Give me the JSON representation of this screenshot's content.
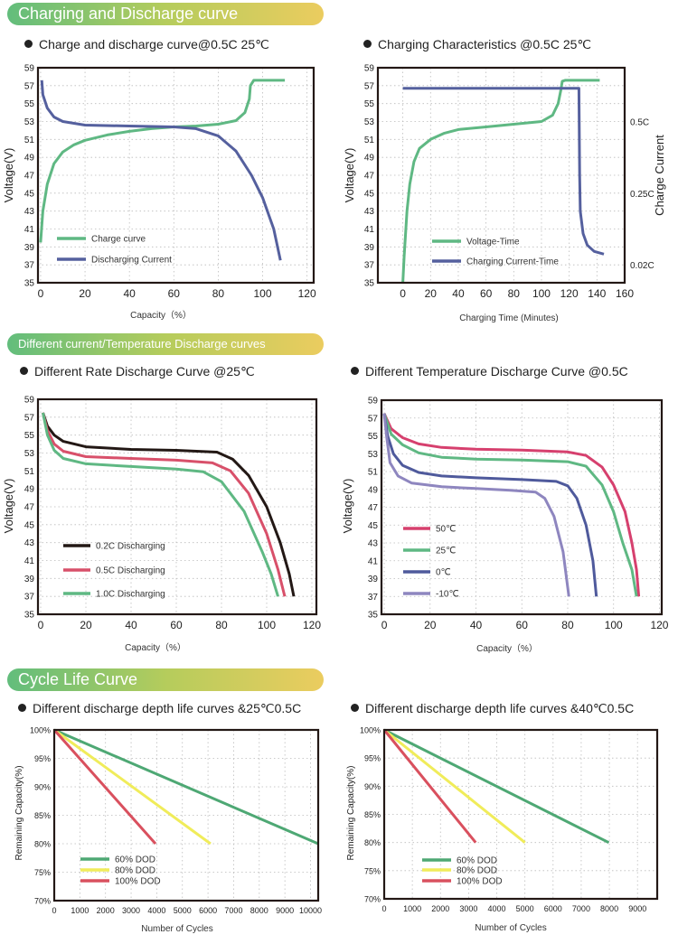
{
  "banners": {
    "charging": "Charging and Discharge curve",
    "temperature": "Different current/Temperature Discharge curves",
    "cycle": "Cycle Life Curve"
  },
  "chart_data": [
    {
      "type": "line",
      "title": "Charge and discharge curve@0.5C 25℃",
      "xlabel": "Capacity（%）",
      "ylabel": "Voltage(V)",
      "xlim": [
        -1.2,
        123
      ],
      "ylim": [
        35,
        59
      ],
      "xticks": [
        "0",
        "20",
        "40",
        "60",
        "80",
        "100",
        "120"
      ],
      "xtick_values": [
        0,
        20,
        40,
        60,
        80,
        100,
        120
      ],
      "yticks": [
        "35",
        "37",
        "39",
        "41",
        "43",
        "45",
        "47",
        "49",
        "51",
        "53",
        "55",
        "57",
        "59"
      ],
      "ytick_values": [
        35,
        37,
        39,
        41,
        43,
        45,
        47,
        49,
        51,
        53,
        55,
        57,
        59
      ],
      "grid": true,
      "legend": "bottom-left",
      "series": [
        {
          "name": "Charge curve",
          "color": "#5fb883",
          "points": [
            [
              0,
              39.5
            ],
            [
              1,
              43
            ],
            [
              3,
              46
            ],
            [
              6,
              48.3
            ],
            [
              10,
              49.6
            ],
            [
              15,
              50.4
            ],
            [
              20,
              50.9
            ],
            [
              30,
              51.5
            ],
            [
              40,
              51.9
            ],
            [
              50,
              52.2
            ],
            [
              60,
              52.4
            ],
            [
              70,
              52.5
            ],
            [
              80,
              52.7
            ],
            [
              88,
              53.1
            ],
            [
              92,
              54
            ],
            [
              94,
              55.5
            ],
            [
              94.5,
              57
            ],
            [
              96,
              57.6
            ],
            [
              110,
              57.6
            ]
          ]
        },
        {
          "name": "Discharging Current",
          "color": "#55609e",
          "points": [
            [
              0.5,
              57.6
            ],
            [
              1,
              56
            ],
            [
              3,
              54.5
            ],
            [
              6,
              53.5
            ],
            [
              10,
              53
            ],
            [
              20,
              52.6
            ],
            [
              40,
              52.5
            ],
            [
              60,
              52.4
            ],
            [
              70,
              52.2
            ],
            [
              80,
              51.4
            ],
            [
              88,
              49.7
            ],
            [
              95,
              47
            ],
            [
              100,
              44.5
            ],
            [
              105,
              41
            ],
            [
              108,
              37.5
            ]
          ]
        }
      ]
    },
    {
      "type": "line",
      "title": "Charging Characteristics @0.5C 25℃",
      "xlabel": "Charging Time (Minutes)",
      "ylabel": "Voltage(V)",
      "y2label": "Charge Current",
      "xlim": [
        -18,
        160
      ],
      "ylim": [
        35,
        59
      ],
      "xticks": [
        "0",
        "20",
        "40",
        "60",
        "80",
        "100",
        "120",
        "140",
        "160"
      ],
      "xtick_values": [
        0,
        20,
        40,
        60,
        80,
        100,
        120,
        140,
        160
      ],
      "yticks": [
        "35",
        "37",
        "39",
        "41",
        "43",
        "45",
        "47",
        "49",
        "51",
        "53",
        "55",
        "57",
        "59"
      ],
      "ytick_values": [
        35,
        37,
        39,
        41,
        43,
        45,
        47,
        49,
        51,
        53,
        55,
        57,
        59
      ],
      "y2ticks": [
        "0.5C",
        "0.25C",
        "0.02C"
      ],
      "y2tick_values": [
        53,
        45,
        37
      ],
      "grid": true,
      "legend": "bottom-center",
      "series": [
        {
          "name": "Voltage-Time",
          "color": "#5fb883",
          "points": [
            [
              0,
              35
            ],
            [
              1,
              38
            ],
            [
              3,
              43
            ],
            [
              5,
              46
            ],
            [
              8,
              48.5
            ],
            [
              12,
              50
            ],
            [
              20,
              51
            ],
            [
              30,
              51.7
            ],
            [
              40,
              52.1
            ],
            [
              60,
              52.4
            ],
            [
              80,
              52.7
            ],
            [
              100,
              53
            ],
            [
              108,
              53.7
            ],
            [
              112,
              55
            ],
            [
              114,
              56.5
            ],
            [
              115,
              57.5
            ],
            [
              117,
              57.6
            ],
            [
              142,
              57.6
            ]
          ]
        },
        {
          "name": "Charging Current-Time",
          "color": "#55609e",
          "points": [
            [
              0,
              56.7
            ],
            [
              127,
              56.7
            ],
            [
              127.5,
              47
            ],
            [
              128,
              43
            ],
            [
              130,
              40.5
            ],
            [
              133,
              39.2
            ],
            [
              138,
              38.5
            ],
            [
              145,
              38.2
            ]
          ]
        }
      ]
    },
    {
      "type": "line",
      "title": "Different Rate Discharge Curve @25℃",
      "xlabel": "Capacity（%）",
      "ylabel": "Voltage(V)",
      "xlim": [
        -1.2,
        122
      ],
      "ylim": [
        35,
        59
      ],
      "xticks": [
        "0",
        "20",
        "40",
        "60",
        "80",
        "100",
        "120"
      ],
      "xtick_values": [
        0,
        20,
        40,
        60,
        80,
        100,
        120
      ],
      "yticks": [
        "35",
        "37",
        "39",
        "41",
        "43",
        "45",
        "47",
        "49",
        "51",
        "53",
        "55",
        "57",
        "59"
      ],
      "ytick_values": [
        35,
        37,
        39,
        41,
        43,
        45,
        47,
        49,
        51,
        53,
        55,
        57,
        59
      ],
      "grid": true,
      "legend": "bottom-left",
      "series": [
        {
          "name": "0.2C Discharging",
          "color": "#231815",
          "points": [
            [
              1,
              57.5
            ],
            [
              3,
              56
            ],
            [
              6,
              55
            ],
            [
              10,
              54.3
            ],
            [
              20,
              53.7
            ],
            [
              40,
              53.4
            ],
            [
              60,
              53.3
            ],
            [
              78,
              53.1
            ],
            [
              85,
              52.3
            ],
            [
              92,
              50.5
            ],
            [
              100,
              47
            ],
            [
              106,
              43
            ],
            [
              110,
              39.5
            ],
            [
              112,
              37
            ]
          ]
        },
        {
          "name": "0.5C Discharging",
          "color": "#d8506a",
          "points": [
            [
              1,
              57.5
            ],
            [
              3,
              55.5
            ],
            [
              6,
              54
            ],
            [
              10,
              53.2
            ],
            [
              20,
              52.6
            ],
            [
              40,
              52.4
            ],
            [
              60,
              52.2
            ],
            [
              76,
              51.9
            ],
            [
              84,
              51
            ],
            [
              92,
              48.5
            ],
            [
              100,
              44
            ],
            [
              105,
              40
            ],
            [
              108,
              37
            ]
          ]
        },
        {
          "name": "1.0C Discharging",
          "color": "#5fb883",
          "points": [
            [
              1,
              57.5
            ],
            [
              3,
              55
            ],
            [
              6,
              53.3
            ],
            [
              10,
              52.4
            ],
            [
              20,
              51.8
            ],
            [
              40,
              51.5
            ],
            [
              60,
              51.2
            ],
            [
              72,
              50.9
            ],
            [
              80,
              49.8
            ],
            [
              90,
              46.5
            ],
            [
              98,
              42
            ],
            [
              102,
              39.5
            ],
            [
              105,
              37
            ]
          ]
        }
      ]
    },
    {
      "type": "line",
      "title": "Different Temperature Discharge Curve @0.5C",
      "xlabel": "Capacity（%）",
      "ylabel": "Voltage(V)",
      "xlim": [
        -1.2,
        121
      ],
      "ylim": [
        35,
        59
      ],
      "xticks": [
        "0",
        "20",
        "40",
        "60",
        "80",
        "100",
        "120"
      ],
      "xtick_values": [
        0,
        20,
        40,
        60,
        80,
        100,
        120
      ],
      "yticks": [
        "35",
        "37",
        "39",
        "41",
        "43",
        "45",
        "47",
        "49",
        "51",
        "53",
        "55",
        "57",
        "59"
      ],
      "ytick_values": [
        35,
        37,
        39,
        41,
        43,
        45,
        47,
        49,
        51,
        53,
        55,
        57,
        59
      ],
      "grid": true,
      "legend": "bottom-left",
      "series": [
        {
          "name": "50℃",
          "color": "#d6406e",
          "points": [
            [
              0,
              57.5
            ],
            [
              3,
              55.8
            ],
            [
              8,
              54.8
            ],
            [
              15,
              54.1
            ],
            [
              25,
              53.7
            ],
            [
              40,
              53.5
            ],
            [
              60,
              53.4
            ],
            [
              80,
              53.2
            ],
            [
              88,
              52.8
            ],
            [
              95,
              51.5
            ],
            [
              100,
              49.5
            ],
            [
              105,
              46.5
            ],
            [
              108,
              43
            ],
            [
              110,
              40
            ],
            [
              111,
              37
            ]
          ]
        },
        {
          "name": "25℃",
          "color": "#5fb883",
          "points": [
            [
              0,
              57.5
            ],
            [
              3,
              55.2
            ],
            [
              8,
              54
            ],
            [
              15,
              53.1
            ],
            [
              25,
              52.6
            ],
            [
              40,
              52.4
            ],
            [
              60,
              52.3
            ],
            [
              80,
              52.1
            ],
            [
              88,
              51.6
            ],
            [
              95,
              49.5
            ],
            [
              100,
              46.5
            ],
            [
              104,
              43
            ],
            [
              108,
              40
            ],
            [
              110,
              37
            ]
          ]
        },
        {
          "name": " 0℃",
          "color": "#4f5a9c",
          "points": [
            [
              0,
              57.5
            ],
            [
              1.5,
              55
            ],
            [
              4,
              53
            ],
            [
              8,
              51.7
            ],
            [
              15,
              50.9
            ],
            [
              25,
              50.5
            ],
            [
              40,
              50.3
            ],
            [
              60,
              50.1
            ],
            [
              75,
              49.9
            ],
            [
              80,
              49.4
            ],
            [
              84,
              48
            ],
            [
              88,
              45
            ],
            [
              91,
              41
            ],
            [
              92.5,
              37
            ]
          ]
        },
        {
          "name": "-10℃",
          "color": "#8e86bf",
          "points": [
            [
              0,
              57.5
            ],
            [
              1,
              55
            ],
            [
              2.5,
              52
            ],
            [
              6,
              50.5
            ],
            [
              12,
              49.7
            ],
            [
              25,
              49.3
            ],
            [
              40,
              49.1
            ],
            [
              55,
              48.9
            ],
            [
              66,
              48.7
            ],
            [
              70,
              48
            ],
            [
              74,
              46
            ],
            [
              78,
              42
            ],
            [
              80.5,
              37
            ]
          ]
        }
      ]
    },
    {
      "type": "line",
      "title": "Different discharge depth life curves &25℃0.5C",
      "xlabel": "Number of Cycles",
      "ylabel": "Remaining Capacity(%)",
      "xlim": [
        0,
        10300
      ],
      "ylim": [
        70,
        100
      ],
      "xticks": [
        "0",
        "1000",
        "2000",
        "3000",
        "4000",
        "5000",
        "6000",
        "7000",
        "8000",
        "9000",
        "10000"
      ],
      "xtick_values": [
        0,
        1000,
        2000,
        3000,
        4000,
        5000,
        6000,
        7000,
        8000,
        9000,
        10000
      ],
      "yticks": [
        "70%",
        "75%",
        "80%",
        "85%",
        "90%",
        "95%",
        "100%"
      ],
      "ytick_values": [
        70,
        75,
        80,
        85,
        90,
        95,
        100
      ],
      "grid": true,
      "legend": "bottom-left",
      "series": [
        {
          "name": "60% DOD",
          "color": "#4ea874",
          "points": [
            [
              0,
              100
            ],
            [
              10300,
              80
            ]
          ]
        },
        {
          "name": "80% DOD",
          "color": "#f0ec5a",
          "points": [
            [
              0,
              100
            ],
            [
              6100,
              80
            ]
          ]
        },
        {
          "name": "100% DOD",
          "color": "#d9505e",
          "points": [
            [
              0,
              100
            ],
            [
              3950,
              80
            ]
          ]
        }
      ]
    },
    {
      "type": "line",
      "title": "Different discharge depth life curves &40℃0.5C",
      "xlabel": "Number of Cycles",
      "ylabel": "Remaining Capacity(%)",
      "xlim": [
        0,
        9700
      ],
      "ylim": [
        70,
        100
      ],
      "xticks": [
        "0",
        "1000",
        "2000",
        "3000",
        "4000",
        "5000",
        "6000",
        "7000",
        "8000",
        "9000"
      ],
      "xtick_values": [
        0,
        1000,
        2000,
        3000,
        4000,
        5000,
        6000,
        7000,
        8000,
        9000
      ],
      "yticks": [
        "70%",
        "75%",
        "80%",
        "85%",
        "90%",
        "95%",
        "100%"
      ],
      "ytick_values": [
        70,
        75,
        80,
        85,
        90,
        95,
        100
      ],
      "grid": true,
      "legend": "bottom-left",
      "series": [
        {
          "name": "60% DOD",
          "color": "#4ea874",
          "points": [
            [
              0,
              100
            ],
            [
              7980,
              80
            ]
          ]
        },
        {
          "name": "80% DOD",
          "color": "#f0ec5a",
          "points": [
            [
              0,
              100
            ],
            [
              5000,
              80
            ]
          ]
        },
        {
          "name": "100% DOD",
          "color": "#d9505e",
          "points": [
            [
              0,
              100
            ],
            [
              3250,
              80
            ]
          ]
        }
      ]
    }
  ]
}
